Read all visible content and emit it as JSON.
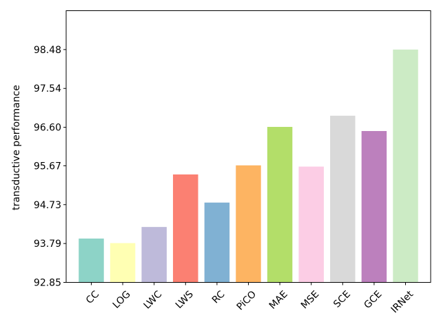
{
  "chart_data": {
    "type": "bar",
    "title": "",
    "xlabel": "",
    "ylabel": "transductive performance",
    "ylim": [
      92.85,
      99.42
    ],
    "yticks": [
      "92.85",
      "93.79",
      "94.73",
      "95.67",
      "96.60",
      "97.54",
      "98.48"
    ],
    "grid": false,
    "categories": [
      "CC",
      "LOG",
      "LWC",
      "LWS",
      "RC",
      "PiCO",
      "MAE",
      "MSE",
      "SCE",
      "GCE",
      "IRNet"
    ],
    "values": [
      93.91,
      93.8,
      94.19,
      95.46,
      94.78,
      95.68,
      96.61,
      95.65,
      96.88,
      96.51,
      98.48
    ],
    "colors": [
      "#8dd3c7",
      "#ffffb3",
      "#bebada",
      "#fb8072",
      "#80b1d3",
      "#fdb462",
      "#b3de69",
      "#fccde5",
      "#d9d9d9",
      "#bc80bd",
      "#ccebc5"
    ]
  }
}
